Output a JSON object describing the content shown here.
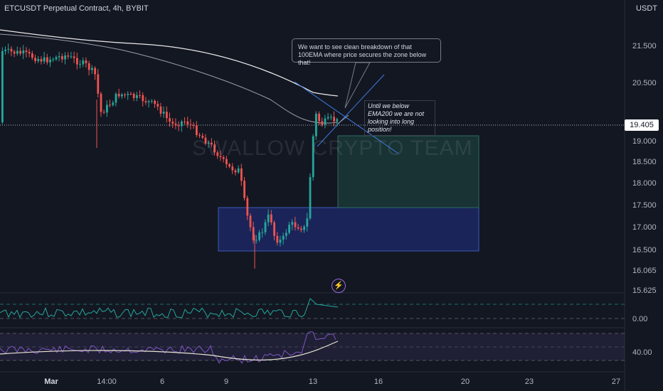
{
  "header": {
    "title": "ETCUSDT Perpetual Contract, 4h, BYBIT",
    "currency": "USDT"
  },
  "price_axis": {
    "labels": [
      "21.500",
      "20.500",
      "19.000",
      "18.500",
      "18.000",
      "17.500",
      "17.000",
      "16.500",
      "16.065",
      "15.625"
    ],
    "current_price": "19.405"
  },
  "indicator_axis": {
    "osc1_label": "0.00",
    "osc2_label": "40.00"
  },
  "time_axis": {
    "labels": [
      "Mar",
      "14:00",
      "6",
      "9",
      "13",
      "16",
      "20",
      "23",
      "27"
    ]
  },
  "annotations": {
    "note_breakdown": "We want to see clean breakdown of that 100EMA where price secures the zone below that!",
    "note_ema200": "Until we below EMA200 we are not looking into long position!"
  },
  "watermark": "SWALLOW CRYPTO TEAM",
  "colors": {
    "up": "#26a69a",
    "down": "#ef5350",
    "zone": "#1e2a6b",
    "target": "#1b3a3a",
    "oscillator": "#26a69a",
    "rsi": "#7e57c2"
  },
  "icons": {
    "alert": "lightning-icon"
  }
}
